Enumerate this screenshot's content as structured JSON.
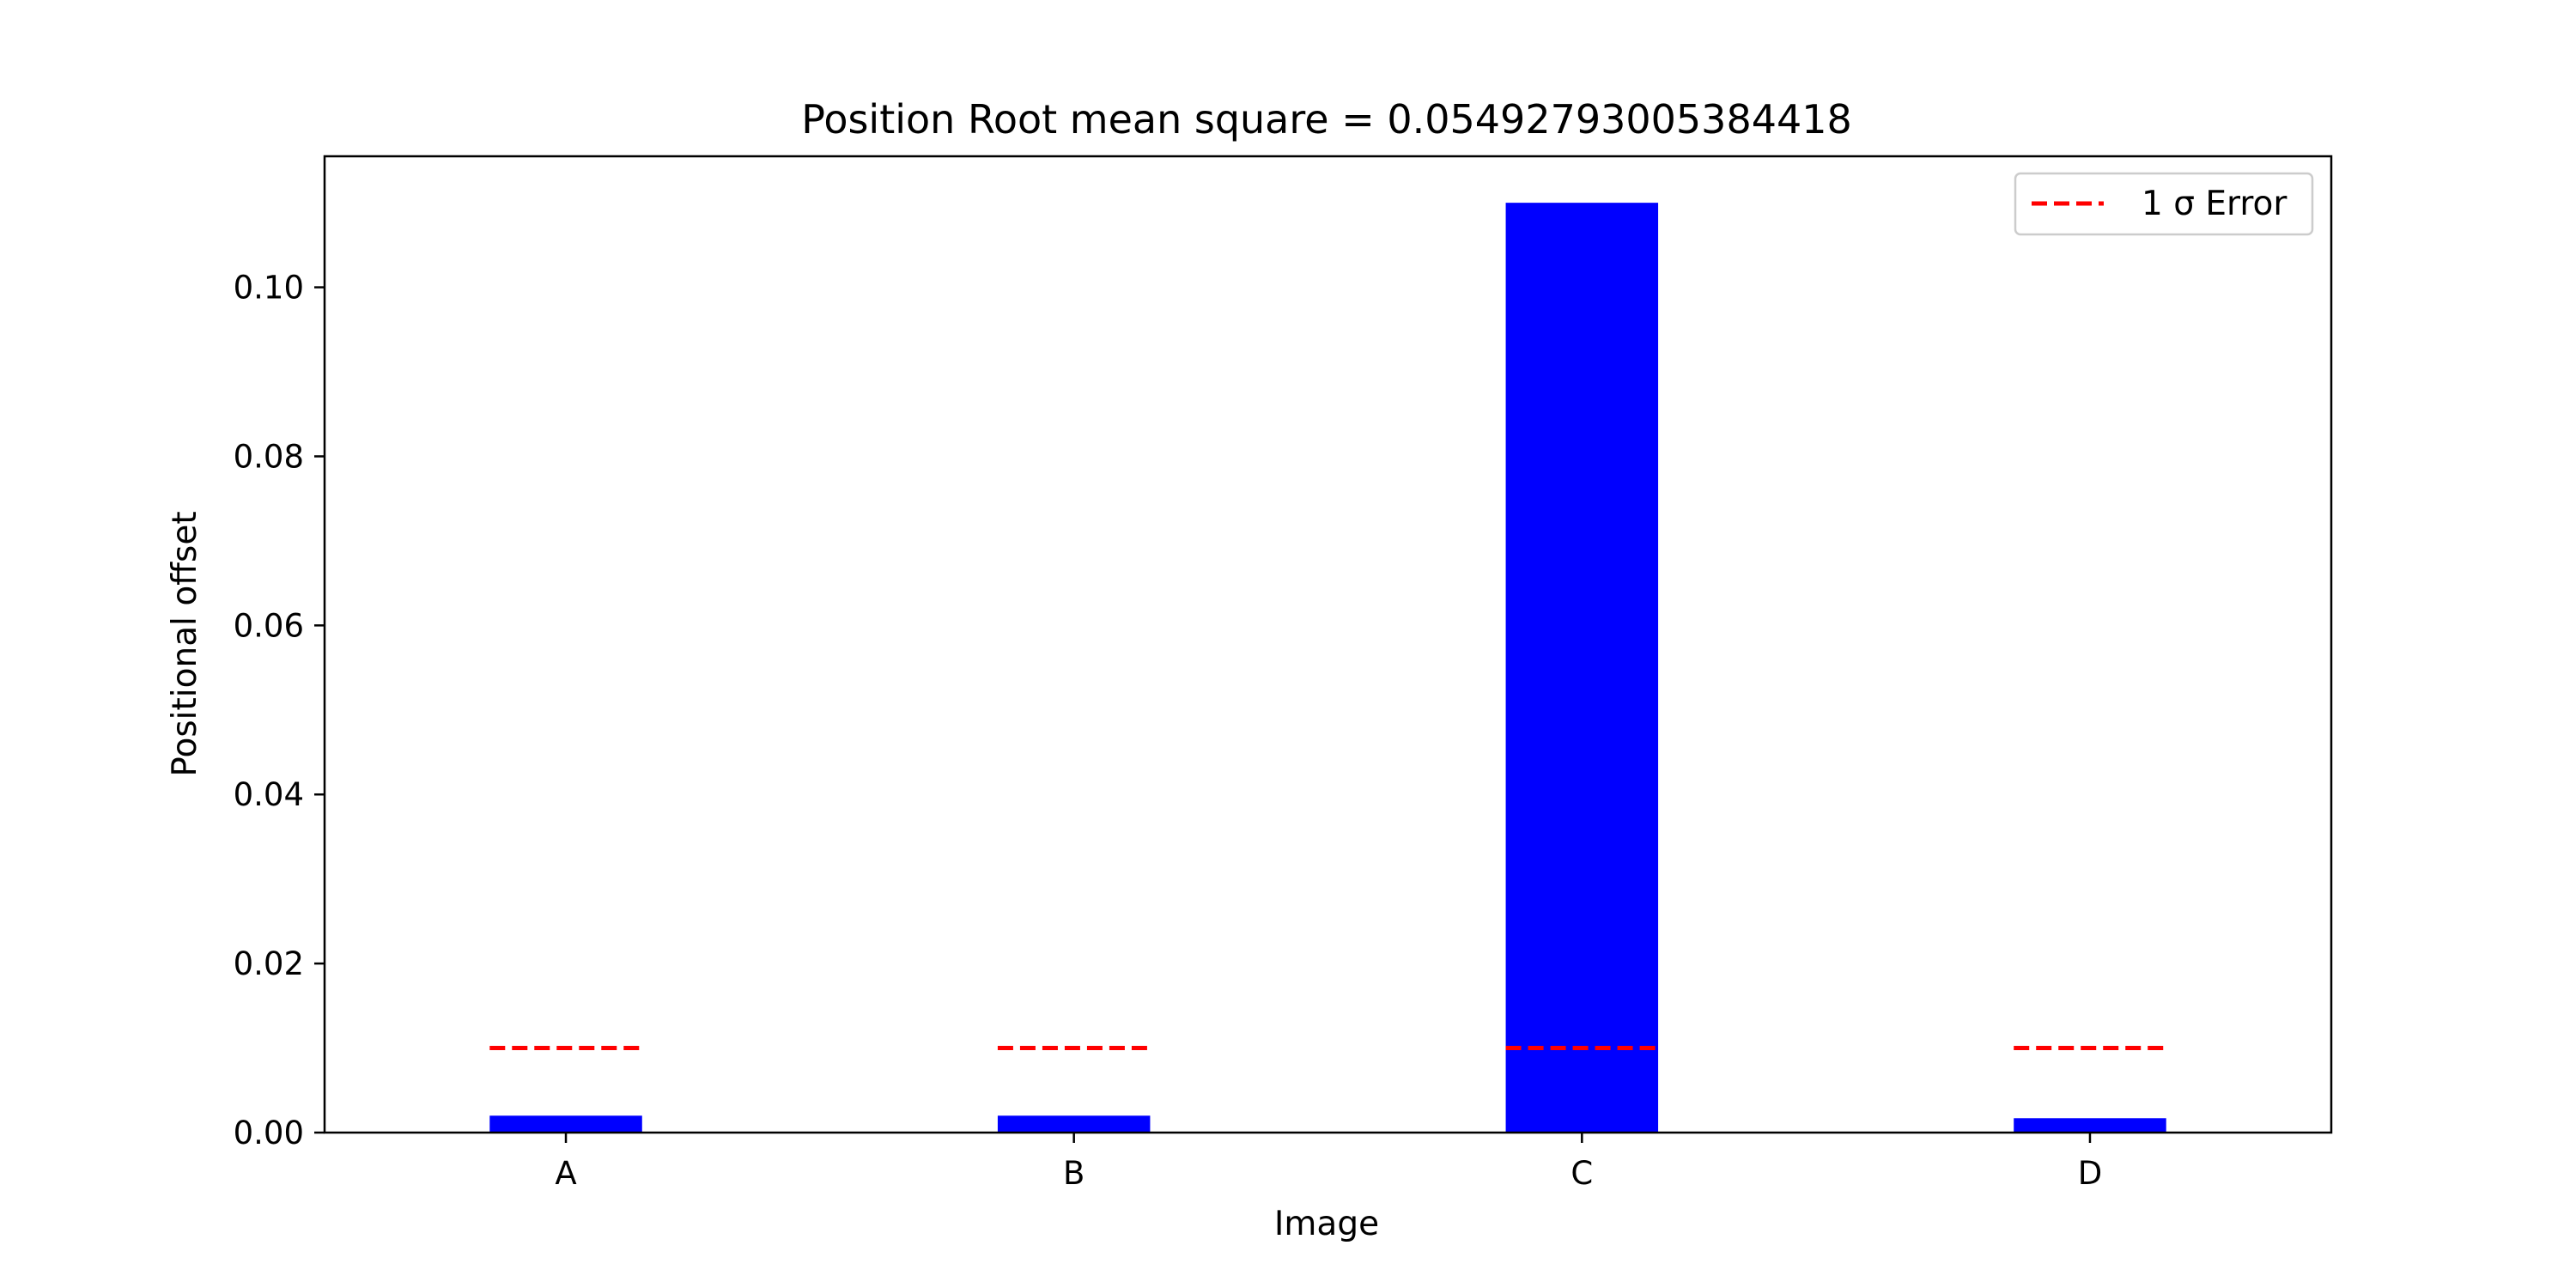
{
  "chart_data": {
    "type": "bar",
    "title": "Position Root mean square = 0.05492793005384418",
    "xlabel": "Image",
    "ylabel": "Positional offset",
    "categories": [
      "A",
      "B",
      "C",
      "D"
    ],
    "series": [
      {
        "values": [
          0.002,
          0.002,
          0.11,
          0.0017
        ]
      }
    ],
    "reference_lines": [
      {
        "name": "1 σ Error",
        "value": 0.01
      }
    ],
    "yticks": [
      "0.00",
      "0.02",
      "0.04",
      "0.06",
      "0.08",
      "0.10"
    ],
    "ylim": [
      0,
      0.1155
    ],
    "grid": false,
    "legend": {
      "placement": "top-right",
      "entries": [
        "1 σ Error"
      ]
    },
    "colors": {
      "bar": "#0000ff",
      "reference_line": "#ff0000"
    }
  }
}
